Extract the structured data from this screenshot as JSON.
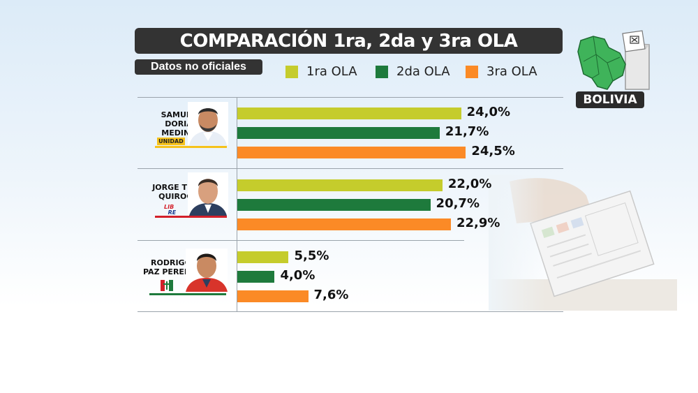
{
  "header": {
    "title": "COMPARACIÓN 1ra, 2da y 3ra OLA",
    "subtitle": "Datos no oficiales",
    "country_badge": "BOLIVIA"
  },
  "legend": [
    {
      "label": "1ra OLA",
      "color": "#c5cc2c"
    },
    {
      "label": "2da OLA",
      "color": "#1e7a3c"
    },
    {
      "label": "3ra OLA",
      "color": "#fb8a26"
    }
  ],
  "candidates": [
    {
      "name_line1": "SAMUEL",
      "name_line2": "DORIA MEDINA",
      "party": "UNIDAD"
    },
    {
      "name_line1": "JORGE TUTO",
      "name_line2": "QUIROGA",
      "party": "LIB RE"
    },
    {
      "name_line1": "RODRIGO",
      "name_line2": "PAZ PEREIRA",
      "party": "PDC"
    }
  ],
  "chart_data": {
    "type": "bar",
    "orientation": "horizontal",
    "title": "COMPARACIÓN 1ra, 2da y 3ra OLA",
    "categories": [
      "SAMUEL DORIA MEDINA",
      "JORGE TUTO QUIROGA",
      "RODRIGO PAZ PEREIRA"
    ],
    "series": [
      {
        "name": "1ra OLA",
        "values": [
          24.0,
          22.0,
          5.5
        ],
        "labels": [
          "24,0%",
          "22,0%",
          "5,5%"
        ],
        "color": "#c5cc2c"
      },
      {
        "name": "2da OLA",
        "values": [
          21.7,
          20.7,
          4.0
        ],
        "labels": [
          "21,7%",
          "20,7%",
          "4,0%"
        ],
        "color": "#1e7a3c"
      },
      {
        "name": "3ra OLA",
        "values": [
          24.5,
          22.9,
          7.6
        ],
        "labels": [
          "24,5%",
          "22,9%",
          "7,6%"
        ],
        "color": "#fb8a26"
      }
    ],
    "unit": "%"
  }
}
